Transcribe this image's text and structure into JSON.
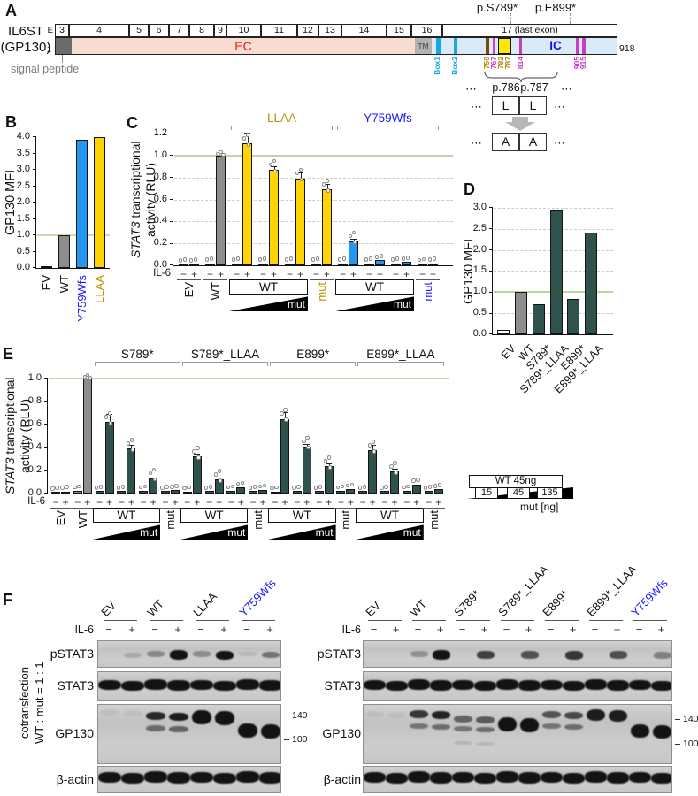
{
  "panel_letters": {
    "a": "A",
    "b": "B",
    "c": "C",
    "d": "D",
    "e": "E",
    "f": "F"
  },
  "panel_a": {
    "gene_line1": "IL6ST",
    "gene_line2": "(GP130)",
    "exon_row_prefix": "E",
    "protein_start": "1",
    "protein_end": "918",
    "exons": [
      "3",
      "4",
      "5",
      "6",
      "7",
      "8",
      "9",
      "10",
      "11",
      "12",
      "13",
      "14",
      "15",
      "16",
      "17 (last exon)"
    ],
    "regions": {
      "signal_peptide_label": "signal peptide",
      "ec": "EC",
      "tm": "TM",
      "ic": "IC"
    },
    "top_mutations": [
      "p.S789*",
      "p.E899*"
    ],
    "sites": [
      {
        "label": "Box1",
        "color": "#18a7e2"
      },
      {
        "label": "Box2",
        "color": "#18a7e2"
      },
      {
        "label": "759",
        "color": "#b8860b"
      },
      {
        "label": "767",
        "color": "#c93ec9"
      },
      {
        "label": "782",
        "color": "#b8860b"
      },
      {
        "label": "787",
        "color": "#b8860b"
      },
      {
        "label": "814",
        "color": "#c93ec9"
      },
      {
        "label": "905",
        "color": "#c93ec9"
      },
      {
        "label": "915",
        "color": "#c93ec9"
      }
    ],
    "inset": {
      "dots": "⋯",
      "pos_left": "p.786",
      "pos_right": "p.787",
      "from": [
        "L",
        "L"
      ],
      "to": [
        "A",
        "A"
      ]
    }
  },
  "chart_data": [
    {
      "id": "b",
      "type": "bar",
      "ylabel": "GP130 MFI",
      "ylim": [
        0,
        4.0
      ],
      "ytick_step": 0.5,
      "ref_line": 1.0,
      "categories": [
        "EV",
        "WT",
        "Y759Wfs",
        "LLAA"
      ],
      "values": [
        0.05,
        1.0,
        3.93,
        4.0
      ],
      "bar_colors": [
        "white",
        "gray",
        "blue",
        "yellow"
      ],
      "label_colors": [
        "black",
        "black",
        "blue",
        "gold"
      ]
    },
    {
      "id": "c",
      "type": "grouped-bar",
      "ylabel_italic": "STAT3",
      "ylabel_rest": " transcriptional",
      "ylabel_line2": "activity (RLU)",
      "ylim": [
        0,
        1.2
      ],
      "ytick_step": 0.2,
      "ref_line": 1.0,
      "il6_label": "IL-6",
      "minus": "−",
      "plus": "+",
      "brackets": [
        {
          "label": "LLAA",
          "color": "gold",
          "from_block": 2,
          "to_block": 3
        },
        {
          "label": "Y759Wfs",
          "color": "blue",
          "from_block": 4,
          "to_block": 5
        }
      ],
      "blocks": [
        {
          "label": "EV",
          "kind": "pair",
          "color": "white",
          "pairs": [
            [
              0.01,
              0.012
            ]
          ]
        },
        {
          "label": "WT",
          "kind": "pair",
          "color": "gray",
          "pairs": [
            [
              0.02,
              1.0
            ]
          ],
          "errs": [
            0.004
          ]
        },
        {
          "label": "WT",
          "kind": "ramp",
          "ramp_label": "mut",
          "color": "yellow",
          "pairs": [
            [
              0.02,
              1.11
            ],
            [
              0.02,
              0.87
            ],
            [
              0.02,
              0.79
            ]
          ],
          "errs": [
            0.1,
            0.035,
            0.06
          ]
        },
        {
          "label": "mut",
          "kind": "pair",
          "label_color": "gold",
          "color": "yellow",
          "pairs": [
            [
              0.02,
              0.69
            ]
          ],
          "errs": [
            0.05
          ]
        },
        {
          "label": "WT",
          "kind": "ramp",
          "ramp_label": "mut",
          "color": "blue",
          "pairs": [
            [
              0.02,
              0.22
            ],
            [
              0.02,
              0.045
            ],
            [
              0.02,
              0.03
            ]
          ],
          "errs": [
            0.02,
            0.008,
            0.005
          ]
        },
        {
          "label": "mut",
          "kind": "pair",
          "label_color": "blue",
          "color": "blue",
          "pairs": [
            [
              0.015,
              0.02
            ]
          ]
        }
      ]
    },
    {
      "id": "d",
      "type": "bar",
      "ylabel": "GP130 MFI",
      "ylim": [
        0,
        3.0
      ],
      "ytick_step": 0.5,
      "ref_line": 1.0,
      "categories": [
        "EV",
        "WT",
        "S789*",
        "S789*_LLAA",
        "E899*",
        "E899*_LLAA"
      ],
      "values": [
        0.1,
        1.0,
        0.72,
        2.93,
        0.84,
        2.42
      ],
      "bar_colors": [
        "white",
        "gray",
        "teal",
        "teal",
        "teal",
        "teal"
      ],
      "label_colors": [
        "black",
        "black",
        "black",
        "black",
        "black",
        "black"
      ]
    },
    {
      "id": "e",
      "type": "grouped-bar",
      "ylabel_italic": "STAT3",
      "ylabel_rest": " transcriptional",
      "ylabel_line2": "activity (RLU)",
      "ylim": [
        0,
        1.0
      ],
      "ytick_step": 0.2,
      "ref_line": 1.0,
      "il6_label": "IL-6",
      "minus": "−",
      "plus": "+",
      "legend": {
        "wt_box": "WT 45ng",
        "ramp_values": [
          "15",
          "45",
          "135"
        ],
        "ramp_caption": "mut [ng]"
      },
      "brackets": [
        {
          "label": "S789*",
          "color": "black",
          "from_block": 2,
          "to_block": 3
        },
        {
          "label": "S789*_LLAA",
          "color": "black",
          "from_block": 4,
          "to_block": 5
        },
        {
          "label": "E899*",
          "color": "black",
          "from_block": 6,
          "to_block": 7
        },
        {
          "label": "E899*_LLAA",
          "color": "black",
          "from_block": 8,
          "to_block": 9
        }
      ],
      "blocks": [
        {
          "label": "EV",
          "kind": "pair",
          "color": "white",
          "pairs": [
            [
              0.013,
              0.018
            ]
          ]
        },
        {
          "label": "WT",
          "kind": "pair",
          "color": "gray",
          "pairs": [
            [
              0.022,
              1.0
            ]
          ],
          "errs": [
            0.004
          ]
        },
        {
          "label": "WT",
          "kind": "ramp",
          "ramp_label": "mut",
          "color": "teal",
          "pairs": [
            [
              0.02,
              0.62
            ],
            [
              0.02,
              0.39
            ],
            [
              0.025,
              0.13
            ]
          ],
          "errs": [
            0.07,
            0.03,
            0.015
          ]
        },
        {
          "label": "mut",
          "kind": "pair",
          "color": "teal",
          "pairs": [
            [
              0.02,
              0.028
            ]
          ],
          "errs": [
            0.005
          ]
        },
        {
          "label": "WT",
          "kind": "ramp",
          "ramp_label": "mut",
          "color": "teal",
          "pairs": [
            [
              0.015,
              0.32
            ],
            [
              0.02,
              0.12
            ],
            [
              0.025,
              0.055
            ]
          ],
          "errs": [
            0.025,
            0.015,
            0.01
          ]
        },
        {
          "label": "mut",
          "kind": "pair",
          "color": "teal",
          "pairs": [
            [
              0.02,
              0.03
            ]
          ],
          "errs": [
            0.005
          ]
        },
        {
          "label": "WT",
          "kind": "ramp",
          "ramp_label": "mut",
          "color": "teal",
          "pairs": [
            [
              0.015,
              0.65
            ],
            [
              0.02,
              0.41
            ],
            [
              0.02,
              0.235
            ]
          ],
          "errs": [
            0.06,
            0.02,
            0.03
          ]
        },
        {
          "label": "mut",
          "kind": "pair",
          "color": "teal",
          "pairs": [
            [
              0.025,
              0.04
            ]
          ],
          "errs": [
            0.006
          ]
        },
        {
          "label": "WT",
          "kind": "ramp",
          "ramp_label": "mut",
          "color": "teal",
          "pairs": [
            [
              0.02,
              0.375
            ],
            [
              0.02,
              0.19
            ],
            [
              0.025,
              0.08
            ]
          ],
          "errs": [
            0.045,
            0.025,
            0.012
          ]
        },
        {
          "label": "mut",
          "kind": "pair",
          "color": "teal",
          "pairs": [
            [
              0.02,
              0.035
            ]
          ],
          "errs": [
            0.006
          ]
        }
      ]
    }
  ],
  "panel_f": {
    "side_label_line1": "cotransfection",
    "side_label_line2": "WT : mut = 1 : 1",
    "il6_label": "IL-6",
    "minus": "−",
    "plus": "+",
    "row_labels": [
      "pSTAT3",
      "STAT3",
      "GP130",
      "β-actin"
    ],
    "markers": [
      "140",
      "100"
    ],
    "left_blot": {
      "columns": [
        {
          "label": "EV"
        },
        {
          "label": "WT"
        },
        {
          "label": "LLAA"
        },
        {
          "label": "Y759Wfs",
          "color": "blue"
        }
      ],
      "pstat3": [
        0,
        0.12,
        0.3,
        1,
        0.28,
        0.95,
        0.04,
        0.42
      ],
      "stat3": [
        1,
        1,
        1,
        1,
        1,
        1,
        1,
        1
      ],
      "gp130": [
        [
          [
            0.08,
            7,
            0.06
          ]
        ],
        [
          [
            0.08,
            7,
            0.05
          ]
        ],
        [
          [
            0.12,
            9,
            0.88
          ],
          [
            0.34,
            7,
            0.5
          ]
        ],
        [
          [
            0.12,
            9,
            0.95
          ],
          [
            0.34,
            7,
            0.55
          ]
        ],
        [
          [
            0.09,
            16,
            1
          ]
        ],
        [
          [
            0.09,
            16,
            1
          ]
        ],
        [
          [
            0.32,
            16,
            1
          ]
        ],
        [
          [
            0.32,
            16,
            1
          ]
        ]
      ],
      "actin": [
        1,
        1,
        1,
        1,
        1,
        1,
        1,
        1
      ]
    },
    "right_blot": {
      "columns": [
        {
          "label": "EV"
        },
        {
          "label": "WT"
        },
        {
          "label": "S789*"
        },
        {
          "label": "S789*_LLAA"
        },
        {
          "label": "E899*"
        },
        {
          "label": "E899*_LLAA"
        },
        {
          "label": "Y759Wfs",
          "color": "blue"
        }
      ],
      "pstat3": [
        0,
        0,
        0.25,
        1,
        0.02,
        0.7,
        0.02,
        0.6,
        0.02,
        0.75,
        0.02,
        0.62,
        0.02,
        0.35
      ],
      "stat3": [
        1,
        1,
        1,
        1,
        1,
        1,
        1,
        1,
        1,
        1,
        1,
        1,
        1,
        1
      ],
      "gp130": [
        [
          [
            0.1,
            7,
            0.06
          ]
        ],
        [
          [
            0.1,
            7,
            0.05
          ]
        ],
        [
          [
            0.1,
            9,
            0.8
          ],
          [
            0.31,
            6,
            0.45
          ]
        ],
        [
          [
            0.1,
            9,
            0.9
          ],
          [
            0.31,
            6,
            0.5
          ]
        ],
        [
          [
            0.18,
            8,
            0.55
          ],
          [
            0.36,
            6,
            0.45
          ],
          [
            0.6,
            4,
            0.12
          ]
        ],
        [
          [
            0.18,
            8,
            0.6
          ],
          [
            0.36,
            6,
            0.5
          ],
          [
            0.6,
            4,
            0.12
          ]
        ],
        [
          [
            0.22,
            16,
            1
          ]
        ],
        [
          [
            0.22,
            16,
            1
          ]
        ],
        [
          [
            0.1,
            8,
            0.65
          ],
          [
            0.31,
            6,
            0.45
          ]
        ],
        [
          [
            0.1,
            8,
            0.7
          ],
          [
            0.31,
            6,
            0.5
          ]
        ],
        [
          [
            0.08,
            13,
            0.95
          ]
        ],
        [
          [
            0.08,
            13,
            0.95
          ]
        ],
        [
          [
            0.32,
            15,
            1
          ]
        ],
        [
          [
            0.32,
            15,
            1
          ]
        ]
      ],
      "actin": [
        1,
        1,
        1,
        1,
        1,
        1,
        1,
        1,
        1,
        1,
        1,
        1,
        1,
        1
      ]
    }
  }
}
